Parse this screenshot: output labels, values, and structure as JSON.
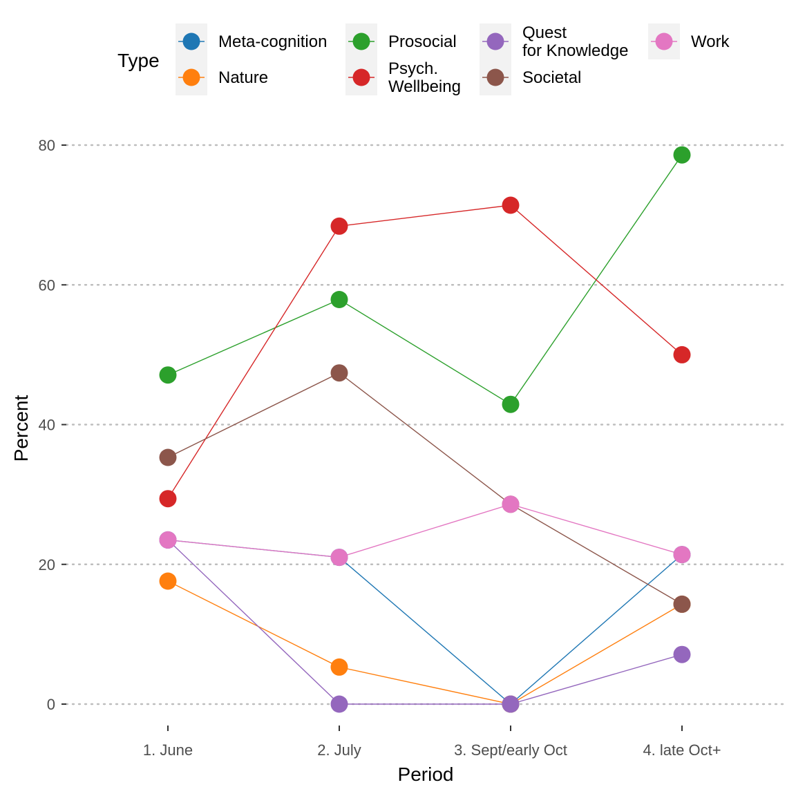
{
  "chart_data": {
    "type": "line",
    "xlabel": "Period",
    "ylabel": "Percent",
    "categories": [
      "1. June",
      "2. July",
      "3. Sept/early Oct",
      "4. late Oct+"
    ],
    "ylim": [
      -3,
      84
    ],
    "yticks": [
      0,
      20,
      40,
      60,
      80
    ],
    "grid": "horizontal dotted",
    "legend": {
      "title": "Type",
      "placement": "top",
      "entries": [
        {
          "label": [
            "Meta-cognition"
          ],
          "color": "#1f77b4"
        },
        {
          "label": [
            "Nature"
          ],
          "color": "#ff7f0e"
        },
        {
          "label": [
            "Prosocial"
          ],
          "color": "#2ca02c"
        },
        {
          "label": [
            "Psych.",
            "Wellbeing"
          ],
          "color": "#d62728"
        },
        {
          "label": [
            "Quest",
            "for Knowledge"
          ],
          "color": "#9467bd"
        },
        {
          "label": [
            "Societal"
          ],
          "color": "#8c564b"
        },
        {
          "label": [
            "Work"
          ],
          "color": "#e377c2"
        }
      ]
    },
    "series": [
      {
        "name": "Meta-cognition",
        "color": "#1f77b4",
        "values": [
          23.5,
          21.0,
          0.0,
          21.4
        ]
      },
      {
        "name": "Nature",
        "color": "#ff7f0e",
        "values": [
          17.6,
          5.3,
          0.0,
          14.3
        ]
      },
      {
        "name": "Prosocial",
        "color": "#2ca02c",
        "values": [
          47.1,
          57.9,
          42.9,
          78.6
        ]
      },
      {
        "name": "Psych. Wellbeing",
        "color": "#d62728",
        "values": [
          29.4,
          68.4,
          71.4,
          50.0
        ]
      },
      {
        "name": "Quest for Knowledge",
        "color": "#9467bd",
        "values": [
          23.5,
          0.0,
          0.0,
          7.1
        ]
      },
      {
        "name": "Societal",
        "color": "#8c564b",
        "values": [
          35.3,
          47.4,
          28.6,
          14.3
        ]
      },
      {
        "name": "Work",
        "color": "#e377c2",
        "values": [
          23.5,
          21.0,
          28.6,
          21.4
        ]
      }
    ]
  }
}
